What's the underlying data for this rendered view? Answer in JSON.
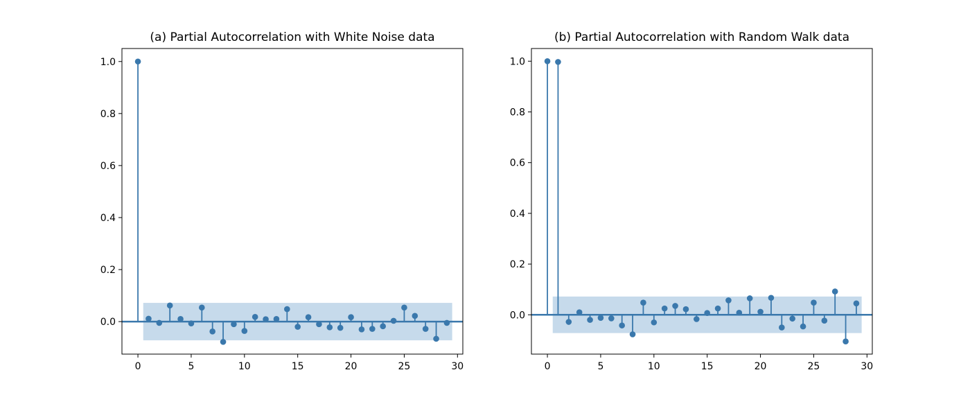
{
  "colors": {
    "stem": "#3a78ac",
    "band": "#c3d8ea",
    "axis": "#000000"
  },
  "chart_data": [
    {
      "type": "stem",
      "title": "(a) Partial Autocorrelation with White Noise data",
      "xlabel": "",
      "ylabel": "",
      "xlim": [
        -1.5,
        30.5
      ],
      "ylim": [
        -0.125,
        1.05
      ],
      "xticks": [
        0,
        5,
        10,
        15,
        20,
        25,
        30
      ],
      "yticks": [
        0.0,
        0.2,
        0.4,
        0.6,
        0.8,
        1.0
      ],
      "ytick_labels": [
        "0.0",
        "0.2",
        "0.4",
        "0.6",
        "0.8",
        "1.0"
      ],
      "grid": false,
      "confidence_band": {
        "x_from": 0.5,
        "x_to": 29.5,
        "lower": -0.072,
        "upper": 0.072
      },
      "lags": [
        0,
        1,
        2,
        3,
        4,
        5,
        6,
        7,
        8,
        9,
        10,
        11,
        12,
        13,
        14,
        15,
        16,
        17,
        18,
        19,
        20,
        21,
        22,
        23,
        24,
        25,
        26,
        27,
        28,
        29
      ],
      "values": [
        1.0,
        0.011,
        -0.005,
        0.062,
        0.01,
        -0.007,
        0.054,
        -0.038,
        -0.078,
        -0.01,
        -0.036,
        0.018,
        0.009,
        0.01,
        0.048,
        -0.02,
        0.017,
        -0.01,
        -0.022,
        -0.024,
        0.017,
        -0.03,
        -0.028,
        -0.018,
        0.003,
        0.054,
        0.022,
        -0.028,
        -0.066,
        -0.005
      ]
    },
    {
      "type": "stem",
      "title": "(b) Partial Autocorrelation with Random Walk data",
      "xlabel": "",
      "ylabel": "",
      "xlim": [
        -1.5,
        30.5
      ],
      "ylim": [
        -0.155,
        1.05
      ],
      "xticks": [
        0,
        5,
        10,
        15,
        20,
        25,
        30
      ],
      "yticks": [
        0.0,
        0.2,
        0.4,
        0.6,
        0.8,
        1.0
      ],
      "ytick_labels": [
        "0.0",
        "0.2",
        "0.4",
        "0.6",
        "0.8",
        "1.0"
      ],
      "grid": false,
      "confidence_band": {
        "x_from": 0.5,
        "x_to": 29.5,
        "lower": -0.072,
        "upper": 0.072
      },
      "lags": [
        0,
        1,
        2,
        3,
        4,
        5,
        6,
        7,
        8,
        9,
        10,
        11,
        12,
        13,
        14,
        15,
        16,
        17,
        18,
        19,
        20,
        21,
        22,
        23,
        24,
        25,
        26,
        27,
        28,
        29
      ],
      "values": [
        1.0,
        0.997,
        -0.028,
        0.01,
        -0.02,
        -0.012,
        -0.014,
        -0.042,
        -0.077,
        0.048,
        -0.03,
        0.025,
        0.035,
        0.022,
        -0.017,
        0.007,
        0.025,
        0.057,
        0.008,
        0.065,
        0.012,
        0.067,
        -0.05,
        -0.015,
        -0.046,
        0.048,
        -0.023,
        0.092,
        -0.105,
        0.045
      ]
    }
  ]
}
